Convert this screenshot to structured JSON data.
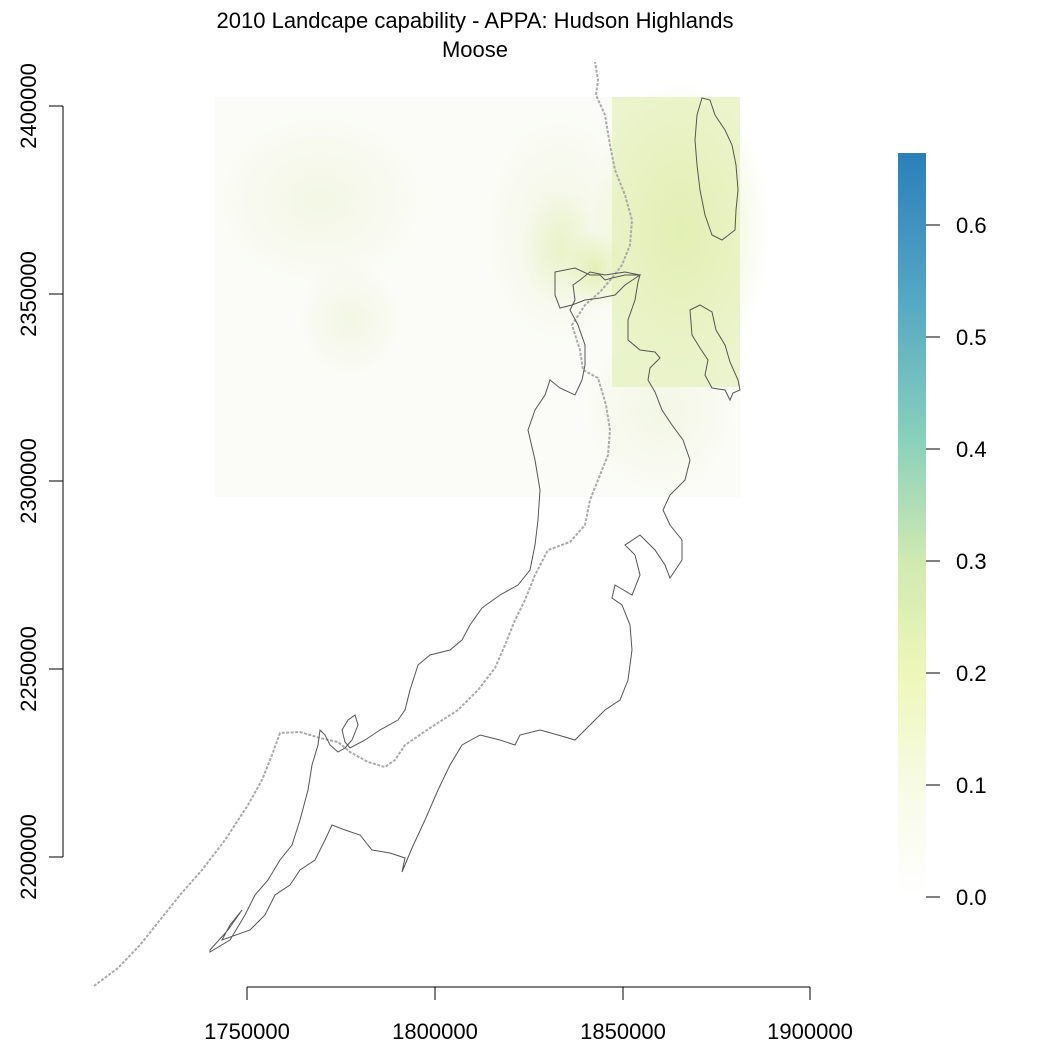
{
  "title": {
    "line1": "2010 Landcape capability - APPA: Hudson Highlands",
    "line2": "Moose"
  },
  "axes": {
    "x_ticks": [
      "1750000",
      "1800000",
      "1850000",
      "1900000"
    ],
    "y_ticks": [
      "2200000",
      "2250000",
      "2300000",
      "2350000",
      "2400000"
    ]
  },
  "legend": {
    "labels": [
      "0.0",
      "0.1",
      "0.2",
      "0.3",
      "0.4",
      "0.5",
      "0.6"
    ],
    "range": [
      0,
      0.66
    ],
    "colors": [
      "#ffffff",
      "#f7fbe4",
      "#eef7b8",
      "#cfeab0",
      "#87d0bb",
      "#55a8c4",
      "#2b7fba"
    ]
  },
  "colors": {
    "boundary": "#555555",
    "trail": "#aaaaaa",
    "raster_low": "#f7f9ee",
    "raster_high": "#e4f0b6"
  }
}
